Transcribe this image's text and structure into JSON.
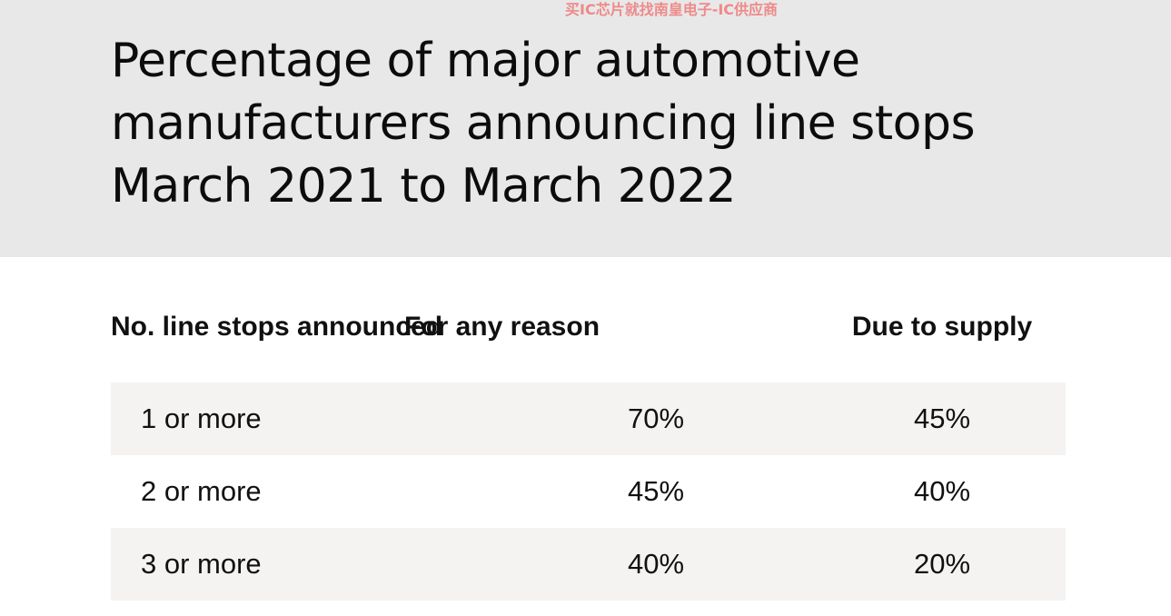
{
  "watermark": "买IC芯片就找南皇电子-IC供应商",
  "chart_data": {
    "type": "table",
    "title": "Percentage of major automotive manufacturers announcing line stops March 2021 to March 2022",
    "columns": [
      "No. line stops announced",
      "For any reason",
      "Due to supply"
    ],
    "rows": [
      [
        "1 or more",
        "70%",
        "45%"
      ],
      [
        "2 or more",
        "45%",
        "40%"
      ],
      [
        "3 or more",
        "40%",
        "20%"
      ]
    ]
  },
  "colors": {
    "header_background": "#e8e8e8",
    "row_shading": "#f4f3f2",
    "text": "#111111",
    "watermark": "#ee8a8a"
  }
}
